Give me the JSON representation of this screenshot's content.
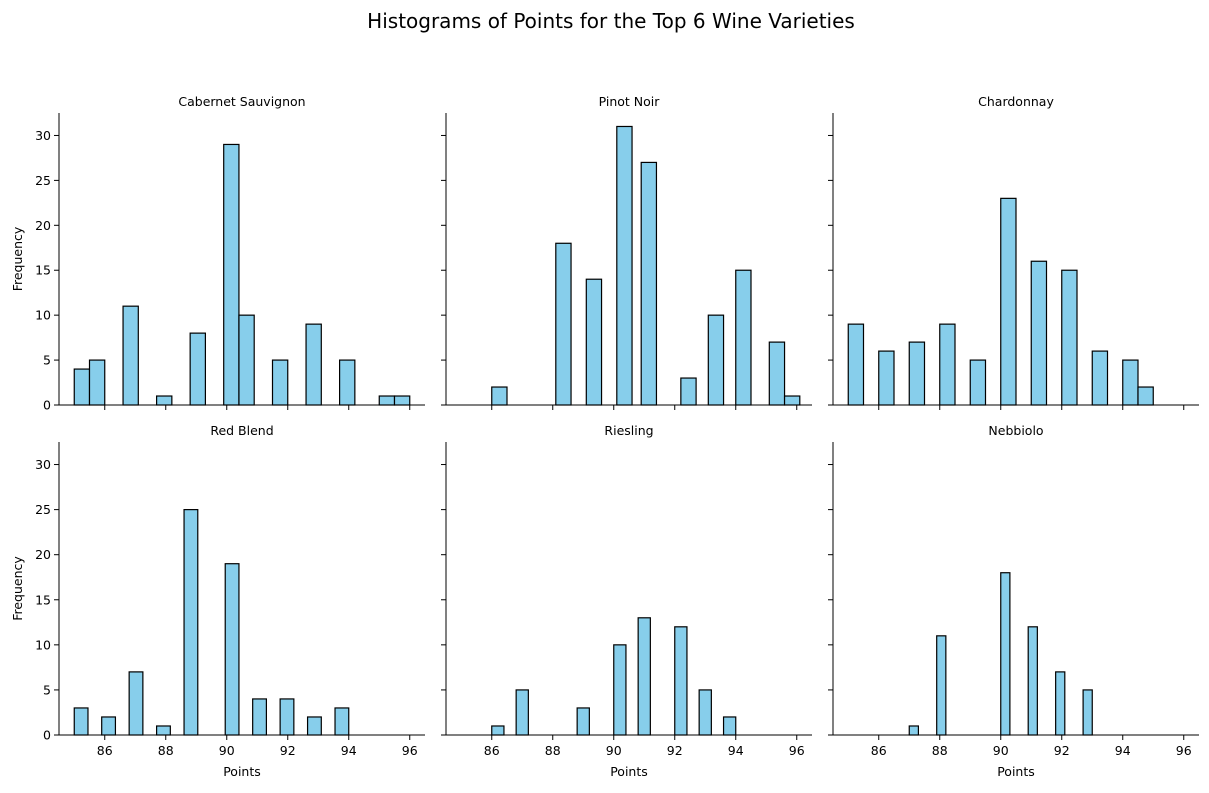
{
  "figure_title": "Histograms of Points for the Top 6 Wine Varieties",
  "colors": {
    "bar_fill": "#87ceeb",
    "bar_edge": "#000000"
  },
  "chart_data": [
    {
      "type": "bar",
      "title": "Cabernet Sauvignon",
      "xlabel": "",
      "ylabel": "Frequency",
      "xlim": [
        84.5,
        96.5
      ],
      "ylim": [
        0,
        32.5
      ],
      "xticks": [
        86,
        88,
        90,
        92,
        94,
        96
      ],
      "yticks": [
        0,
        5,
        10,
        15,
        20,
        25,
        30
      ],
      "bins": [
        {
          "start": 85.0,
          "end": 85.5,
          "value": 4
        },
        {
          "start": 85.5,
          "end": 86.0,
          "value": 5
        },
        {
          "start": 86.6,
          "end": 87.1,
          "value": 11
        },
        {
          "start": 87.7,
          "end": 88.2,
          "value": 1
        },
        {
          "start": 88.8,
          "end": 89.3,
          "value": 8
        },
        {
          "start": 89.9,
          "end": 90.4,
          "value": 29
        },
        {
          "start": 90.4,
          "end": 90.9,
          "value": 10
        },
        {
          "start": 91.5,
          "end": 92.0,
          "value": 5
        },
        {
          "start": 92.6,
          "end": 93.1,
          "value": 9
        },
        {
          "start": 93.7,
          "end": 94.2,
          "value": 5
        },
        {
          "start": 95.0,
          "end": 95.5,
          "value": 1
        },
        {
          "start": 95.5,
          "end": 96.0,
          "value": 1
        }
      ]
    },
    {
      "type": "bar",
      "title": "Pinot Noir",
      "xlabel": "",
      "ylabel": "",
      "xlim": [
        84.5,
        96.5
      ],
      "ylim": [
        0,
        32.5
      ],
      "xticks": [
        86,
        88,
        90,
        92,
        94,
        96
      ],
      "yticks": [
        0,
        5,
        10,
        15,
        20,
        25,
        30
      ],
      "bins": [
        {
          "start": 86.0,
          "end": 86.5,
          "value": 2
        },
        {
          "start": 88.1,
          "end": 88.6,
          "value": 18
        },
        {
          "start": 89.1,
          "end": 89.6,
          "value": 14
        },
        {
          "start": 90.1,
          "end": 90.6,
          "value": 31
        },
        {
          "start": 90.9,
          "end": 91.4,
          "value": 27
        },
        {
          "start": 92.2,
          "end": 92.7,
          "value": 3
        },
        {
          "start": 93.1,
          "end": 93.6,
          "value": 10
        },
        {
          "start": 94.0,
          "end": 94.5,
          "value": 15
        },
        {
          "start": 95.1,
          "end": 95.6,
          "value": 7
        },
        {
          "start": 95.6,
          "end": 96.1,
          "value": 1
        }
      ]
    },
    {
      "type": "bar",
      "title": "Chardonnay",
      "xlabel": "",
      "ylabel": "",
      "xlim": [
        84.5,
        96.5
      ],
      "ylim": [
        0,
        32.5
      ],
      "xticks": [
        86,
        88,
        90,
        92,
        94,
        96
      ],
      "yticks": [
        0,
        5,
        10,
        15,
        20,
        25,
        30
      ],
      "bins": [
        {
          "start": 85.0,
          "end": 85.5,
          "value": 9
        },
        {
          "start": 86.0,
          "end": 86.5,
          "value": 6
        },
        {
          "start": 87.0,
          "end": 87.5,
          "value": 7
        },
        {
          "start": 88.0,
          "end": 88.5,
          "value": 9
        },
        {
          "start": 89.0,
          "end": 89.5,
          "value": 5
        },
        {
          "start": 90.0,
          "end": 90.5,
          "value": 23
        },
        {
          "start": 91.0,
          "end": 91.5,
          "value": 16
        },
        {
          "start": 92.0,
          "end": 92.5,
          "value": 15
        },
        {
          "start": 93.0,
          "end": 93.5,
          "value": 6
        },
        {
          "start": 94.0,
          "end": 94.5,
          "value": 5
        },
        {
          "start": 94.5,
          "end": 95.0,
          "value": 2
        }
      ]
    },
    {
      "type": "bar",
      "title": "Red Blend",
      "xlabel": "Points",
      "ylabel": "Frequency",
      "xlim": [
        84.5,
        96.5
      ],
      "ylim": [
        0,
        32.5
      ],
      "xticks": [
        86,
        88,
        90,
        92,
        94,
        96
      ],
      "yticks": [
        0,
        5,
        10,
        15,
        20,
        25,
        30
      ],
      "bins": [
        {
          "start": 85.0,
          "end": 85.45,
          "value": 3
        },
        {
          "start": 85.9,
          "end": 86.35,
          "value": 2
        },
        {
          "start": 86.8,
          "end": 87.25,
          "value": 7
        },
        {
          "start": 87.7,
          "end": 88.15,
          "value": 1
        },
        {
          "start": 88.6,
          "end": 89.05,
          "value": 25
        },
        {
          "start": 89.95,
          "end": 90.4,
          "value": 19
        },
        {
          "start": 90.85,
          "end": 91.3,
          "value": 4
        },
        {
          "start": 91.75,
          "end": 92.2,
          "value": 4
        },
        {
          "start": 92.65,
          "end": 93.1,
          "value": 2
        },
        {
          "start": 93.55,
          "end": 94.0,
          "value": 3
        }
      ]
    },
    {
      "type": "bar",
      "title": "Riesling",
      "xlabel": "Points",
      "ylabel": "",
      "xlim": [
        84.5,
        96.5
      ],
      "ylim": [
        0,
        32.5
      ],
      "xticks": [
        86,
        88,
        90,
        92,
        94,
        96
      ],
      "yticks": [
        0,
        5,
        10,
        15,
        20,
        25,
        30
      ],
      "bins": [
        {
          "start": 86.0,
          "end": 86.4,
          "value": 1
        },
        {
          "start": 86.8,
          "end": 87.2,
          "value": 5
        },
        {
          "start": 88.8,
          "end": 89.2,
          "value": 3
        },
        {
          "start": 90.0,
          "end": 90.4,
          "value": 10
        },
        {
          "start": 90.8,
          "end": 91.2,
          "value": 13
        },
        {
          "start": 92.0,
          "end": 92.4,
          "value": 12
        },
        {
          "start": 92.8,
          "end": 93.2,
          "value": 5
        },
        {
          "start": 93.6,
          "end": 94.0,
          "value": 2
        }
      ]
    },
    {
      "type": "bar",
      "title": "Nebbiolo",
      "xlabel": "Points",
      "ylabel": "",
      "xlim": [
        84.5,
        96.5
      ],
      "ylim": [
        0,
        32.5
      ],
      "xticks": [
        86,
        88,
        90,
        92,
        94,
        96
      ],
      "yticks": [
        0,
        5,
        10,
        15,
        20,
        25,
        30
      ],
      "bins": [
        {
          "start": 87.0,
          "end": 87.3,
          "value": 1
        },
        {
          "start": 87.9,
          "end": 88.2,
          "value": 11
        },
        {
          "start": 90.0,
          "end": 90.3,
          "value": 18
        },
        {
          "start": 90.9,
          "end": 91.2,
          "value": 12
        },
        {
          "start": 91.8,
          "end": 92.1,
          "value": 7
        },
        {
          "start": 92.7,
          "end": 93.0,
          "value": 5
        }
      ]
    }
  ]
}
